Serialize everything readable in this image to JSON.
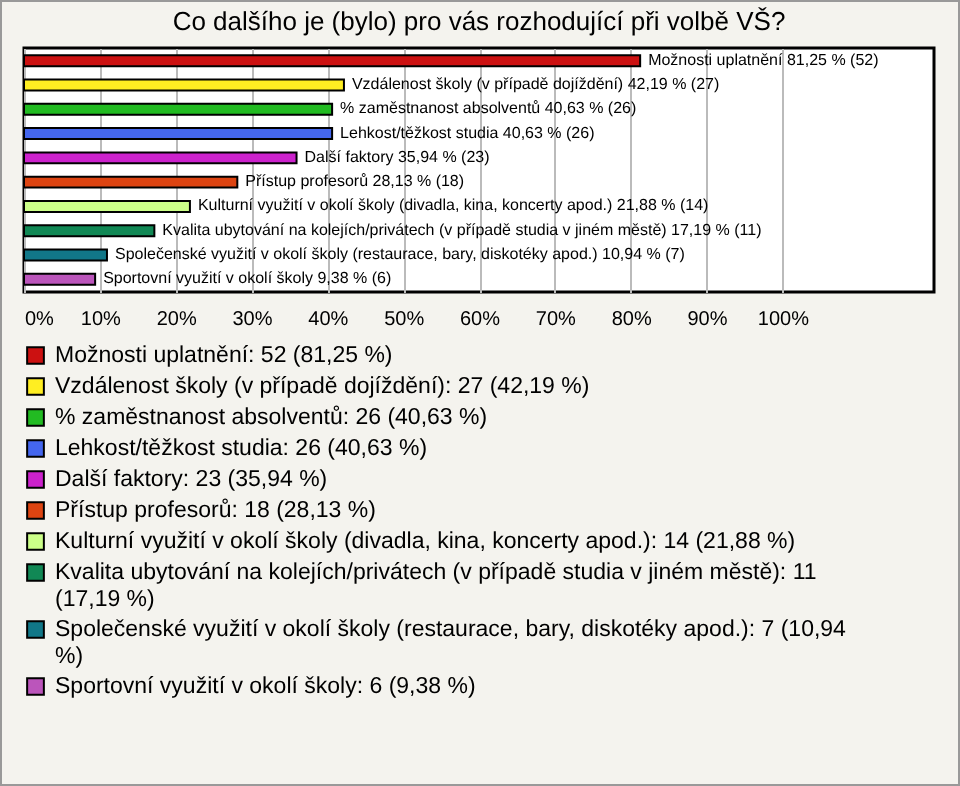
{
  "chart_data": {
    "type": "bar",
    "orientation": "horizontal",
    "title": "Co dalšího je (bylo) pro vás rozhodující při volbě VŠ?",
    "categories": [
      "Možnosti uplatnění",
      "Vzdálenost školy (v případě dojíždění)",
      "% zaměstnanost absolventů",
      "Lehkost/těžkost studia",
      "Další faktory",
      "Přístup profesorů",
      "Kulturní využití v okolí školy (divadla, kina, koncerty apod.)",
      "Kvalita ubytování na kolejích/privátech (v případě studia v jiném městě)",
      "Společenské využití v okolí školy (restaurace, bary, diskotéky apod.)",
      "Sportovní využití v okolí školy"
    ],
    "values": [
      81.25,
      42.19,
      40.63,
      40.63,
      35.94,
      28.13,
      21.88,
      17.19,
      10.94,
      9.38
    ],
    "value_labels": [
      "81,25 % (52)",
      "42,19 % (27)",
      "40,63 % (26)",
      "40,63 % (26)",
      "35,94 % (23)",
      "28,13 % (18)",
      "21,88 % (14)",
      "17,19 % (11)",
      "10,94 % (7)",
      "9,38 % (6)"
    ],
    "colors": [
      "#cc1111",
      "#ffee22",
      "#22bb22",
      "#4466ee",
      "#cc22cc",
      "#dd4411",
      "#ccff88",
      "#118855",
      "#117788",
      "#bb55bb"
    ],
    "xlim": [
      0,
      120
    ],
    "xticks": [
      {
        "value": 0,
        "label": "0%"
      },
      {
        "value": 10,
        "label": "10%"
      },
      {
        "value": 20,
        "label": "20%"
      },
      {
        "value": 30,
        "label": "30%"
      },
      {
        "value": 40,
        "label": "40%"
      },
      {
        "value": 50,
        "label": "50%"
      },
      {
        "value": 60,
        "label": "60%"
      },
      {
        "value": 70,
        "label": "70%"
      },
      {
        "value": 80,
        "label": "80%"
      },
      {
        "value": 90,
        "label": "90%"
      },
      {
        "value": 100,
        "label": "100%"
      }
    ],
    "grid": "x",
    "tick_labels": "x",
    "annotations": [
      "Možnosti uplatnění: 52 (81,25 %)",
      "Vzdálenost školy (v případě dojíždění): 27 (42,19 %)",
      "% zaměstnanost absolventů: 26 (40,63 %)",
      "Lehkost/těžkost studia: 26 (40,63 %)",
      "Další faktory: 23 (35,94 %)",
      "Přístup profesorů: 18 (28,13 %)",
      "Kulturní využití v okolí školy (divadla, kina, koncerty apod.): 14 (21,88 %)",
      "Kvalita ubytování na kolejích/privátech (v případě studia v jiném městě): 11 (17,19 %)",
      "Společenské využití v okolí školy (restaurace, bary, diskotéky apod.): 7 (10,94 %)",
      "Sportovní využití v okolí školy: 6 (9,38 %)"
    ]
  }
}
